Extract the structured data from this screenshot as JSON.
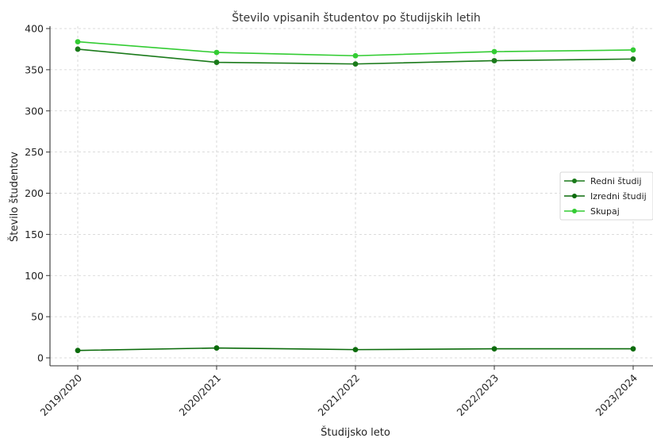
{
  "chart_data": {
    "type": "line",
    "title": "Število vpisanih študentov po študijskih letih",
    "xlabel": "Študijsko leto",
    "ylabel": "Število študentov",
    "categories": [
      "2019/2020",
      "2020/2021",
      "2021/2022",
      "2022/2023",
      "2023/2024"
    ],
    "ylim": [
      0,
      400
    ],
    "yticks": [
      0,
      50,
      100,
      150,
      200,
      250,
      300,
      350,
      400
    ],
    "grid": true,
    "legend_position": "center-right",
    "series": [
      {
        "name": "Redni študij",
        "values": [
          375,
          359,
          357,
          361,
          363
        ],
        "color": "#1a7a1a"
      },
      {
        "name": "Izredni študij",
        "values": [
          9,
          12,
          10,
          11,
          11
        ],
        "color": "#0b6b0b"
      },
      {
        "name": "Skupaj",
        "values": [
          384,
          371,
          367,
          372,
          374
        ],
        "color": "#33cc33"
      }
    ]
  }
}
